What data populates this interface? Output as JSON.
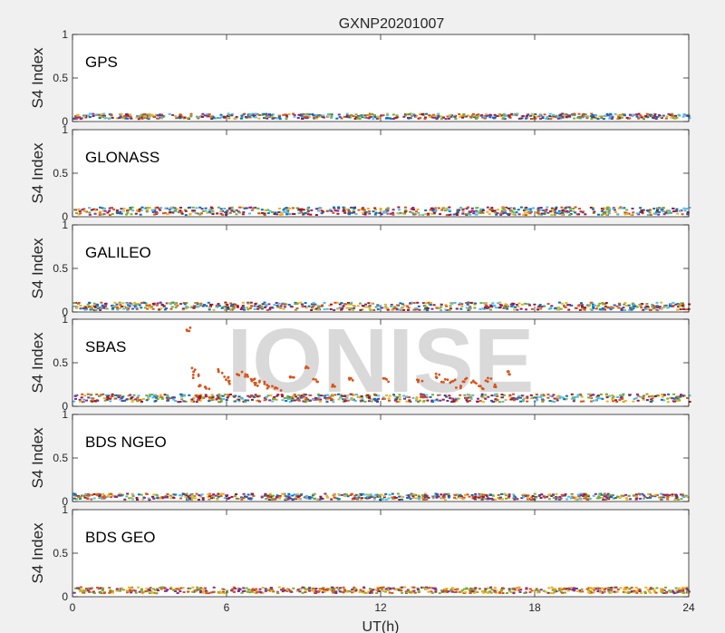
{
  "figure": {
    "title": "GXNP20201007",
    "xlabel": "UT(h)",
    "watermark": "IONISE"
  },
  "chart_data": [
    {
      "type": "scatter",
      "panel_label": "GPS",
      "ylabel": "S4 Index",
      "xlim": [
        0,
        24
      ],
      "ylim": [
        0,
        1
      ],
      "xticks": [
        0,
        6,
        12,
        18,
        24
      ],
      "yticks": [
        0,
        0.5,
        1
      ],
      "grid": false,
      "baseline_range": [
        0.04,
        0.1
      ],
      "colors": [
        "#0072bd",
        "#d95319",
        "#edb120",
        "#7e2f8e",
        "#77ac30",
        "#4dbeee",
        "#a2142f"
      ]
    },
    {
      "type": "scatter",
      "panel_label": "GLONASS",
      "ylabel": "S4 Index",
      "xlim": [
        0,
        24
      ],
      "ylim": [
        0,
        1
      ],
      "xticks": [
        0,
        6,
        12,
        18,
        24
      ],
      "yticks": [
        0,
        0.5,
        1
      ],
      "grid": false,
      "baseline_range": [
        0.03,
        0.12
      ],
      "colors": [
        "#0072bd",
        "#d95319",
        "#edb120",
        "#7e2f8e",
        "#77ac30",
        "#4dbeee",
        "#a2142f"
      ]
    },
    {
      "type": "scatter",
      "panel_label": "GALILEO",
      "ylabel": "S4 Index",
      "xlim": [
        0,
        24
      ],
      "ylim": [
        0,
        1
      ],
      "xticks": [
        0,
        6,
        12,
        18,
        24
      ],
      "yticks": [
        0,
        0.5,
        1
      ],
      "grid": false,
      "baseline_range": [
        0.03,
        0.12
      ],
      "colors": [
        "#0072bd",
        "#d95319",
        "#edb120",
        "#7e2f8e",
        "#77ac30",
        "#4dbeee",
        "#a2142f"
      ]
    },
    {
      "type": "scatter",
      "panel_label": "SBAS",
      "ylabel": "S4 Index",
      "xlim": [
        0,
        24
      ],
      "ylim": [
        0,
        1
      ],
      "xticks": [
        0,
        6,
        12,
        18,
        24
      ],
      "yticks": [
        0,
        0.5,
        1
      ],
      "grid": false,
      "baseline_range": [
        0.06,
        0.15
      ],
      "colors": [
        "#0072bd",
        "#d95319",
        "#edb120",
        "#7e2f8e",
        "#77ac30",
        "#4dbeee",
        "#a2142f"
      ],
      "scintillation_points": [
        {
          "x": 4.5,
          "y": 0.88
        },
        {
          "x": 4.7,
          "y": 0.42
        },
        {
          "x": 4.8,
          "y": 0.35
        },
        {
          "x": 5.0,
          "y": 0.25
        },
        {
          "x": 5.2,
          "y": 0.2
        },
        {
          "x": 5.8,
          "y": 0.4
        },
        {
          "x": 6.0,
          "y": 0.32
        },
        {
          "x": 6.2,
          "y": 0.27
        },
        {
          "x": 6.5,
          "y": 0.38
        },
        {
          "x": 6.8,
          "y": 0.35
        },
        {
          "x": 7.0,
          "y": 0.3
        },
        {
          "x": 7.2,
          "y": 0.25
        },
        {
          "x": 7.4,
          "y": 0.28
        },
        {
          "x": 7.7,
          "y": 0.23
        },
        {
          "x": 8.0,
          "y": 0.2
        },
        {
          "x": 8.5,
          "y": 0.32
        },
        {
          "x": 9.2,
          "y": 0.45
        },
        {
          "x": 9.5,
          "y": 0.3
        },
        {
          "x": 10.2,
          "y": 0.25
        },
        {
          "x": 10.8,
          "y": 0.3
        },
        {
          "x": 12.2,
          "y": 0.3
        },
        {
          "x": 13.5,
          "y": 0.3
        },
        {
          "x": 14.2,
          "y": 0.35
        },
        {
          "x": 14.5,
          "y": 0.3
        },
        {
          "x": 14.8,
          "y": 0.28
        },
        {
          "x": 15.0,
          "y": 0.22
        },
        {
          "x": 15.3,
          "y": 0.3
        },
        {
          "x": 15.6,
          "y": 0.28
        },
        {
          "x": 15.9,
          "y": 0.22
        },
        {
          "x": 16.2,
          "y": 0.3
        },
        {
          "x": 16.5,
          "y": 0.24
        },
        {
          "x": 17.0,
          "y": 0.38
        }
      ]
    },
    {
      "type": "scatter",
      "panel_label": "BDS NGEO",
      "ylabel": "S4 Index",
      "xlim": [
        0,
        24
      ],
      "ylim": [
        0,
        1
      ],
      "xticks": [
        0,
        6,
        12,
        18,
        24
      ],
      "yticks": [
        0,
        0.5,
        1
      ],
      "grid": false,
      "baseline_range": [
        0.03,
        0.1
      ],
      "colors": [
        "#0072bd",
        "#d95319",
        "#edb120",
        "#7e2f8e",
        "#77ac30",
        "#4dbeee",
        "#a2142f"
      ]
    },
    {
      "type": "scatter",
      "panel_label": "BDS GEO",
      "ylabel": "S4 Index",
      "xlim": [
        0,
        24
      ],
      "ylim": [
        0,
        1
      ],
      "xticks": [
        0,
        6,
        12,
        18,
        24
      ],
      "yticks": [
        0,
        0.5,
        1
      ],
      "grid": false,
      "baseline_range": [
        0.05,
        0.12
      ],
      "colors": [
        "#77ac30",
        "#7e2f8e",
        "#edb120",
        "#d95319"
      ]
    }
  ]
}
